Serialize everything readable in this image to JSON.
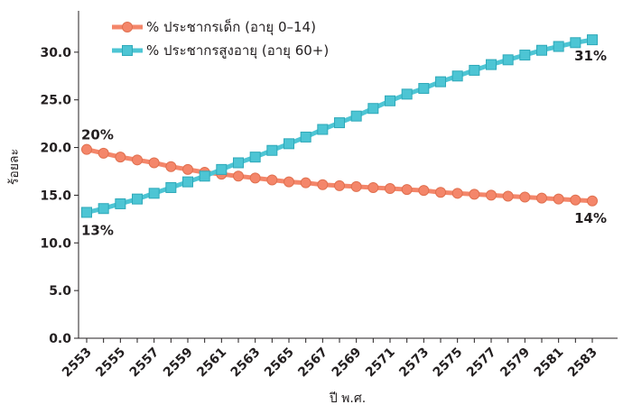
{
  "chart_data": {
    "type": "line",
    "xlabel": "ปี พ.ศ.",
    "ylabel": "ร้อยละ",
    "ylim": [
      0,
      35
    ],
    "yticks": [
      "0.0",
      "5.0",
      "10.0",
      "15.0",
      "20.0",
      "25.0",
      "30.0"
    ],
    "xticks": [
      "2553",
      "2555",
      "2557",
      "2559",
      "2561",
      "2563",
      "2565",
      "2567",
      "2569",
      "2571",
      "2573",
      "2575",
      "2577",
      "2579",
      "2581",
      "2583"
    ],
    "x": [
      2553,
      2554,
      2555,
      2556,
      2557,
      2558,
      2559,
      2560,
      2561,
      2562,
      2563,
      2564,
      2565,
      2566,
      2567,
      2568,
      2569,
      2570,
      2571,
      2572,
      2573,
      2574,
      2575,
      2576,
      2577,
      2578,
      2579,
      2580,
      2581,
      2582,
      2583
    ],
    "legend_position": "top-left",
    "series": [
      {
        "name": "% ประชากรเด็ก (อายุ 0–14)",
        "color": "#f4866a",
        "marker": "circle",
        "end_labels": {
          "start": "20%",
          "end": "14%"
        },
        "values": [
          19.8,
          19.4,
          19.0,
          18.7,
          18.4,
          18.0,
          17.7,
          17.4,
          17.2,
          17.0,
          16.8,
          16.6,
          16.4,
          16.3,
          16.1,
          16.0,
          15.9,
          15.8,
          15.7,
          15.6,
          15.5,
          15.3,
          15.2,
          15.1,
          15.0,
          14.9,
          14.8,
          14.7,
          14.6,
          14.5,
          14.4
        ]
      },
      {
        "name": "% ประชากรสูงอายุ (อายุ 60+)",
        "color": "#4dc5d4",
        "marker": "square",
        "end_labels": {
          "start": "13%",
          "end": "31%"
        },
        "values": [
          13.2,
          13.6,
          14.1,
          14.6,
          15.2,
          15.8,
          16.4,
          17.0,
          17.7,
          18.4,
          19.0,
          19.7,
          20.4,
          21.1,
          21.9,
          22.6,
          23.3,
          24.1,
          24.9,
          25.6,
          26.2,
          26.9,
          27.5,
          28.1,
          28.7,
          29.2,
          29.7,
          30.2,
          30.6,
          31.0,
          31.3
        ]
      }
    ]
  }
}
